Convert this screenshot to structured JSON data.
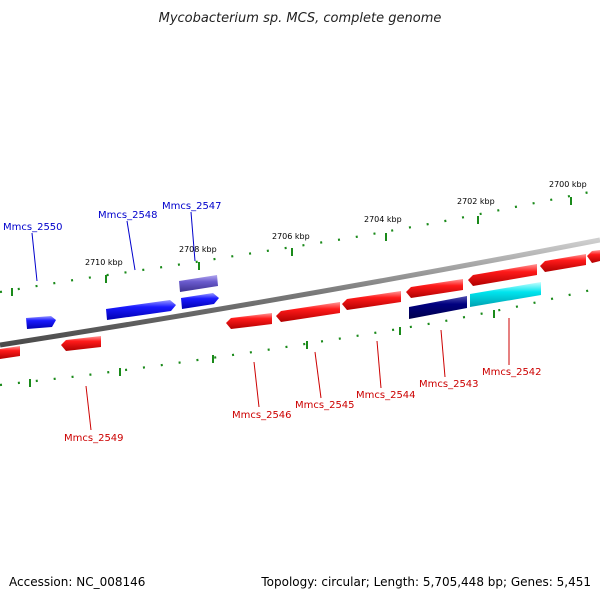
{
  "title": "Mycobacterium sp. MCS, complete genome",
  "footer": {
    "accession": "Accession: NC_008146",
    "info": "Topology: circular; Length: 5,705,448 bp; Genes: 5,451"
  },
  "colors": {
    "backbone": "#7a7a7a",
    "tick": "#1a8a1a",
    "forward": "#0000ee",
    "forward_label": "#0000cc",
    "reverse": "#ee0000",
    "reverse_label": "#cc0000",
    "highlight_forward": "#6a5acd",
    "highlight_navy": "#000080",
    "highlight_cyan": "#00e5ee"
  },
  "kbp_labels": [
    "2700 kbp",
    "2702 kbp",
    "2704 kbp",
    "2706 kbp",
    "2708 kbp",
    "2710 kbp"
  ],
  "genes": [
    {
      "name": "Mmcs_2550",
      "strand": "+"
    },
    {
      "name": "Mmcs_2549",
      "strand": "-"
    },
    {
      "name": "Mmcs_2548",
      "strand": "+"
    },
    {
      "name": "Mmcs_2547",
      "strand": "+"
    },
    {
      "name": "Mmcs_2546",
      "strand": "-"
    },
    {
      "name": "Mmcs_2545",
      "strand": "-"
    },
    {
      "name": "Mmcs_2544",
      "strand": "-"
    },
    {
      "name": "Mmcs_2543",
      "strand": "-"
    },
    {
      "name": "Mmcs_2542",
      "strand": "-"
    }
  ]
}
